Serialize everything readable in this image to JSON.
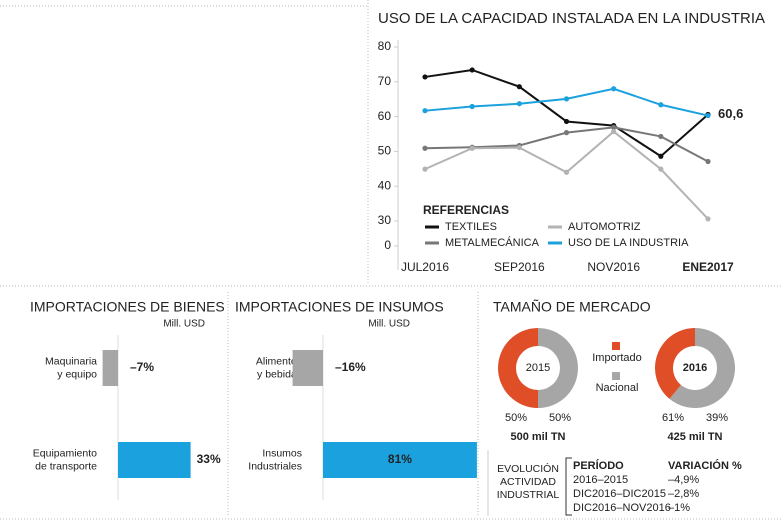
{
  "chart_data": [
    {
      "type": "line",
      "title": "USO DE LA CAPACIDAD INSTALADA EN LA INDUSTRIA",
      "categories": [
        "JUL2016",
        null,
        "SEP2016",
        null,
        "NOV2016",
        null,
        "ENE2017"
      ],
      "ylim": [
        0,
        80
      ],
      "axis_break": [
        0,
        30
      ],
      "yticks": [
        0,
        30,
        40,
        50,
        60,
        70,
        80
      ],
      "legend_title": "REFERENCIAS",
      "series": [
        {
          "name": "TEXTILES",
          "color": "#111111",
          "values": [
            71.4,
            73.4,
            68.6,
            58.6,
            57.4,
            48.6,
            60.6
          ],
          "value_labels": [
            null,
            null,
            null,
            null,
            null,
            null,
            "60,6"
          ]
        },
        {
          "name": "METALMECÁNICA",
          "color": "#777777",
          "values": [
            50.9,
            51.2,
            51.7,
            55.4,
            56.9,
            54.3,
            47.1
          ]
        },
        {
          "name": "AUTOMOTRIZ",
          "color": "#b3b3b3",
          "values": [
            44.9,
            50.9,
            51.1,
            44.0,
            55.7,
            44.9,
            30.6
          ]
        },
        {
          "name": "USO DE LA INDUSTRIA",
          "color": "#1ba1dd",
          "values": [
            61.7,
            62.9,
            63.7,
            65.1,
            68.0,
            63.4,
            60.3
          ]
        }
      ]
    },
    {
      "type": "hbar",
      "title": "IMPORTACIONES DE BIENES",
      "unit": "Mill. USD",
      "categories": [
        "Maquinaria\ny equipo",
        "Equipamiento\nde transporte"
      ],
      "values": [
        -7,
        33
      ],
      "value_labels": [
        "–7%",
        "33%"
      ],
      "colors": [
        "#a6a6a6",
        "#1ba1dd"
      ]
    },
    {
      "type": "hbar",
      "title": "IMPORTACIONES DE INSUMOS",
      "unit": "Mill. USD",
      "categories": [
        "Alimentos\ny bebidas",
        "Insumos\nIndustriales"
      ],
      "values": [
        -16,
        81
      ],
      "value_labels": [
        "–16%",
        "81%"
      ],
      "colors": [
        "#a6a6a6",
        "#1ba1dd"
      ]
    },
    {
      "type": "donut",
      "title": "TAMAÑO DE MERCADO",
      "categories": [
        "2015",
        "2016"
      ],
      "totals": [
        "500 mil TN",
        "425 mil TN"
      ],
      "series": [
        {
          "name": "Nacional",
          "color": "#a6a6a6",
          "values": [
            50,
            61
          ],
          "value_labels": [
            "50%",
            "61%"
          ]
        },
        {
          "name": "Importado",
          "color": "#e04e28",
          "values": [
            50,
            39
          ],
          "value_labels": [
            "50%",
            "39%"
          ]
        }
      ]
    }
  ],
  "table": {
    "title": "EVOLUCIÓN\nACTIVIDAD\nINDUSTRIAL",
    "header": [
      "PERÍODO",
      "VARIACIÓN %"
    ],
    "rows": [
      [
        "2016–2015",
        "–4,9%"
      ],
      [
        "DIC2016–DIC2015",
        "–2,8%"
      ],
      [
        "DIC2016–NOV2016",
        "–1%"
      ]
    ]
  }
}
